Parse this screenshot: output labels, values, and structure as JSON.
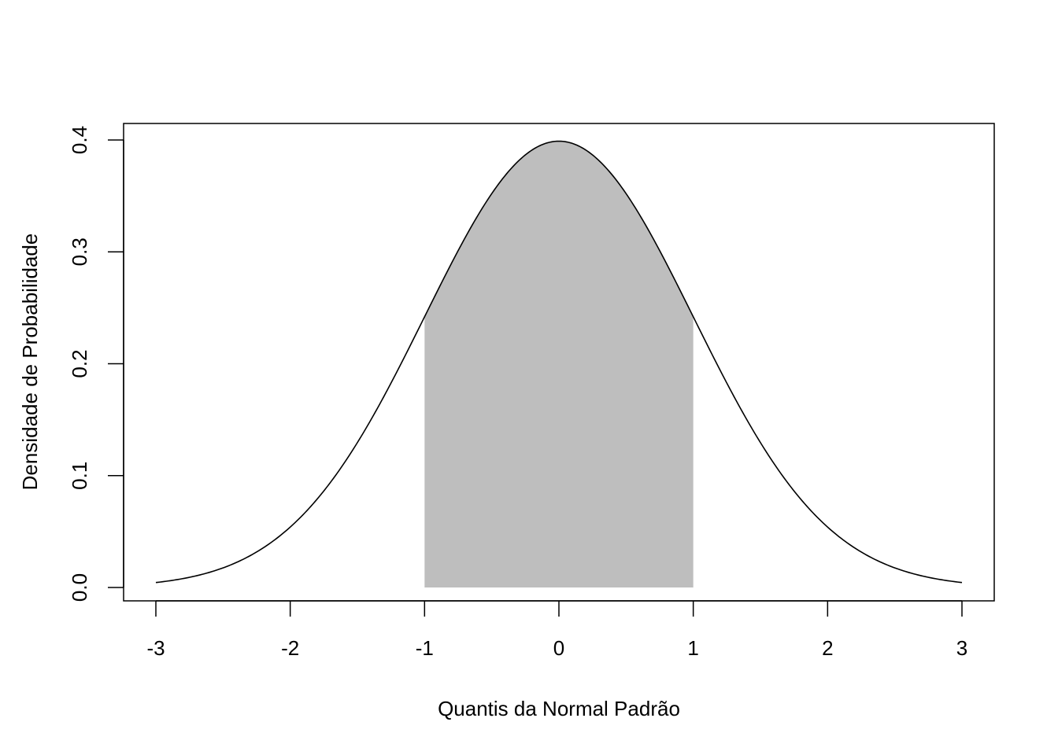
{
  "chart_data": {
    "type": "area",
    "title": "",
    "xlabel": "Quantis da Normal Padrão",
    "ylabel": "Densidade de Probabilidade",
    "xlim": [
      -3,
      3
    ],
    "ylim": [
      0,
      0.4
    ],
    "x_ticks": [
      -3,
      -2,
      -1,
      0,
      1,
      2,
      3
    ],
    "x_tick_labels": [
      "-3",
      "-2",
      "-1",
      "0",
      "1",
      "2",
      "3"
    ],
    "y_ticks": [
      0.0,
      0.1,
      0.2,
      0.3,
      0.4
    ],
    "y_tick_labels": [
      "0.0",
      "0.1",
      "0.2",
      "0.3",
      "0.4"
    ],
    "grid": false,
    "curve": {
      "distribution": "standard normal density",
      "x": [
        -3,
        -2.75,
        -2.5,
        -2.25,
        -2,
        -1.75,
        -1.5,
        -1.25,
        -1,
        -0.75,
        -0.5,
        -0.25,
        0,
        0.25,
        0.5,
        0.75,
        1,
        1.25,
        1.5,
        1.75,
        2,
        2.25,
        2.5,
        2.75,
        3
      ],
      "y": [
        0.0044,
        0.0091,
        0.0175,
        0.0317,
        0.054,
        0.0863,
        0.1295,
        0.1826,
        0.242,
        0.3011,
        0.3521,
        0.3867,
        0.3989,
        0.3867,
        0.3521,
        0.3011,
        0.242,
        0.1826,
        0.1295,
        0.0863,
        0.054,
        0.0317,
        0.0175,
        0.0091,
        0.0044
      ],
      "color": "#000000"
    },
    "shaded_region": {
      "x_from": -1,
      "x_to": 1,
      "color": "#bebebe"
    }
  }
}
